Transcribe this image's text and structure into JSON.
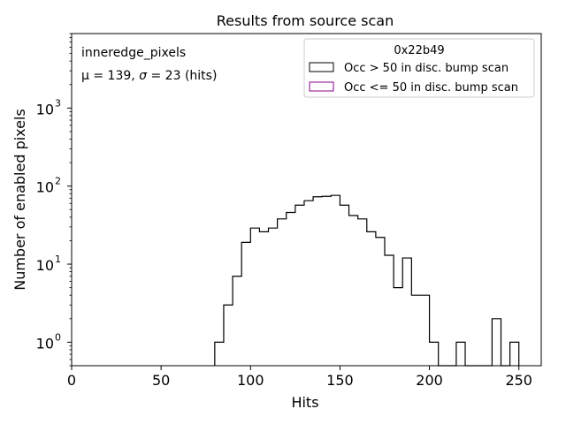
{
  "chart_data": {
    "type": "bar",
    "title": "Results from source scan",
    "xlabel": "Hits",
    "ylabel": "Number of enabled pixels",
    "xlim": [
      0,
      262.5
    ],
    "ylim": [
      0.5,
      9000
    ],
    "yscale": "log",
    "grid": false,
    "x_ticks": [
      0,
      50,
      100,
      150,
      200,
      250
    ],
    "x_tick_labels": [
      "0",
      "50",
      "100",
      "150",
      "200",
      "250"
    ],
    "y_ticks": [
      1,
      10,
      100,
      1000
    ],
    "y_tick_labels": [
      "10",
      "10",
      "10",
      "10"
    ],
    "y_tick_exponents": [
      "0",
      "1",
      "2",
      "3"
    ],
    "bin_width": 5,
    "annotations": {
      "line1": "inneredge_pixels",
      "line2_prefix": "μ = 139, ",
      "line2_sigma": "σ",
      "line2_suffix": " = 23 (hits)"
    },
    "legend": {
      "placement": "top-right",
      "title": "0x22b49",
      "entries": [
        "Occ > 50 in disc. bump scan",
        "Occ <= 50 in disc. bump scan"
      ],
      "colors": [
        "#000000",
        "#8b008b"
      ]
    },
    "series": [
      {
        "name": "Occ > 50 in disc. bump scan",
        "color": "#000000",
        "bin_starts": [
          80,
          85,
          90,
          95,
          100,
          105,
          110,
          115,
          120,
          125,
          130,
          135,
          140,
          145,
          150,
          155,
          160,
          165,
          170,
          175,
          180,
          185,
          190,
          195,
          200,
          205,
          210,
          215,
          220,
          225,
          230,
          235,
          240,
          245
        ],
        "values": [
          1,
          3,
          7,
          19,
          29,
          26,
          29,
          38,
          46,
          57,
          65,
          73,
          74,
          76,
          57,
          42,
          38,
          26,
          22,
          13,
          5,
          12,
          4,
          4,
          1,
          0,
          0,
          1,
          0,
          0,
          0,
          2,
          0,
          1
        ]
      },
      {
        "name": "Occ <= 50 in disc. bump scan",
        "color": "#8b008b",
        "bin_starts": [],
        "values": []
      }
    ]
  }
}
